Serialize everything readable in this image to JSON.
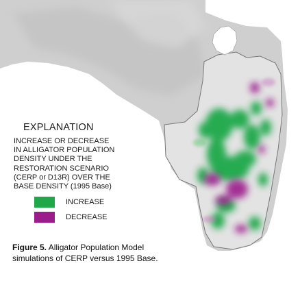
{
  "legend": {
    "title": "EXPLANATION",
    "description_lines": [
      "INCREASE OR DECREASE",
      "IN ALLIGATOR POPULATION",
      "DENSITY UNDER THE",
      "RESTORATION SCENARIO",
      "(CERP or D13R) OVER THE",
      "BASE DENSITY (1995 Base)"
    ],
    "items": [
      {
        "label": "INCREASE",
        "color": "#1ea84a"
      },
      {
        "label": "DECREASE",
        "color": "#9b1d8c"
      }
    ]
  },
  "caption": {
    "figure_label": "Figure 5.",
    "line1": "Alligator Population Model",
    "line2": "simulations of CERP versus 1995 Base."
  },
  "colors": {
    "land": "#cfcfcf",
    "land_dark": "#bdbdbd",
    "model_area": "#e3e3e3",
    "lake": "#ffffff",
    "increase": "#1ea84a",
    "decrease": "#9b1d8c"
  }
}
